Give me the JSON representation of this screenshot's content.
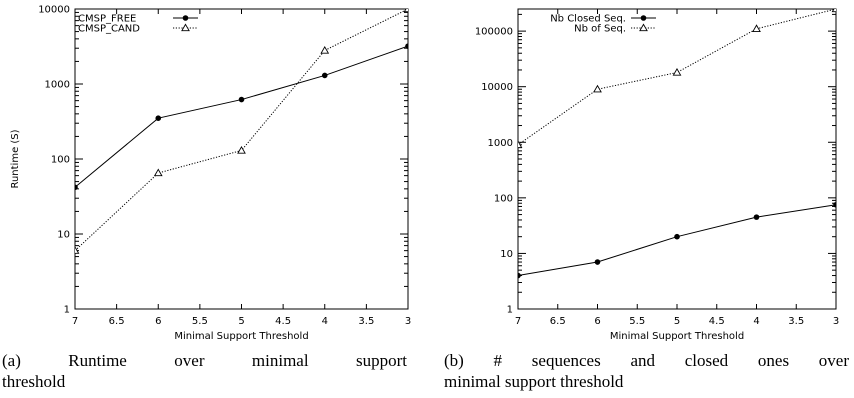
{
  "chart_data": [
    {
      "type": "line",
      "ylabel": "Runtime (S)",
      "xlabel": "Minimal Support Threshold",
      "x_reversed": true,
      "xlim": [
        7,
        3
      ],
      "yscale": "log",
      "ylim": [
        1,
        10000
      ],
      "x_ticks": [
        "7",
        "6.5",
        "6",
        "5.5",
        "5",
        "4.5",
        "4",
        "3.5",
        "3"
      ],
      "y_ticks": [
        "1",
        "10",
        "100",
        "1000",
        "10000"
      ],
      "legend_position": "top-left",
      "series": [
        {
          "name": "CMSP_FREE",
          "style": "solid",
          "marker": "circle",
          "x": [
            7,
            6,
            5,
            4,
            3
          ],
          "y": [
            42,
            350,
            620,
            1300,
            3200
          ]
        },
        {
          "name": "CMSP_CAND",
          "style": "dotted",
          "marker": "triangle",
          "x": [
            7,
            6,
            5,
            4,
            3
          ],
          "y": [
            6,
            65,
            130,
            2800,
            10000
          ]
        }
      ],
      "caption_line1": "(a) Runtime over minimal support",
      "caption_line2": "threshold"
    },
    {
      "type": "line",
      "xlabel": "Minimal Support Threshold",
      "x_reversed": true,
      "xlim": [
        7,
        3
      ],
      "yscale": "log",
      "ylim": [
        1,
        250000
      ],
      "x_ticks": [
        "7",
        "6.5",
        "6",
        "5.5",
        "5",
        "4.5",
        "4",
        "3.5",
        "3"
      ],
      "y_ticks": [
        "1",
        "10",
        "100",
        "1000",
        "10000",
        "100000"
      ],
      "legend_position": "top-left",
      "series": [
        {
          "name": "Nb Closed Seq.",
          "style": "solid",
          "marker": "circle",
          "x": [
            7,
            6,
            5,
            4,
            3
          ],
          "y": [
            4,
            7,
            20,
            45,
            75
          ]
        },
        {
          "name": "Nb of Seq.",
          "style": "dotted",
          "marker": "triangle",
          "x": [
            7,
            6,
            5,
            4,
            3
          ],
          "y": [
            900,
            9000,
            18000,
            110000,
            250000
          ]
        }
      ],
      "caption_line1": "(b) # sequences and closed ones over",
      "caption_line2": "minimal support threshold"
    }
  ]
}
